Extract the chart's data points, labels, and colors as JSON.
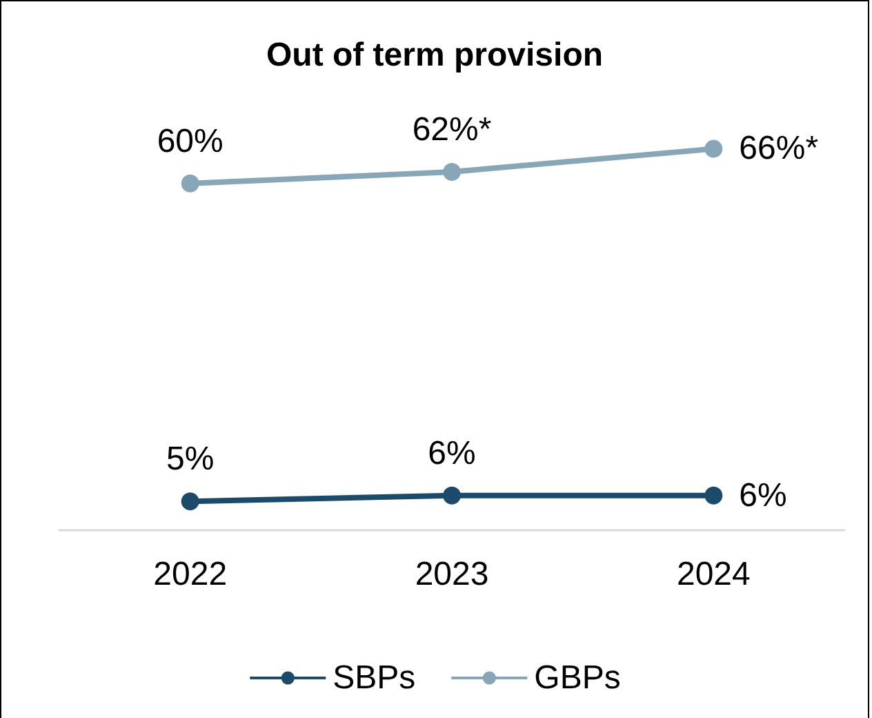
{
  "chart_data": {
    "type": "line",
    "title": "Out of term provision",
    "categories": [
      "2022",
      "2023",
      "2024"
    ],
    "series": [
      {
        "name": "SBPs",
        "color": "#1b4a6b",
        "values": [
          5,
          6,
          6
        ],
        "value_labels": [
          "5%",
          "6%",
          "6%"
        ]
      },
      {
        "name": "GBPs",
        "color": "#87a7b9",
        "values": [
          60,
          62,
          66
        ],
        "value_labels": [
          "60%",
          "62%*",
          "66%*"
        ]
      }
    ],
    "legend": "bottom",
    "marker": "circle",
    "line_style": "solid",
    "grid": false,
    "tick_labels": "x"
  }
}
